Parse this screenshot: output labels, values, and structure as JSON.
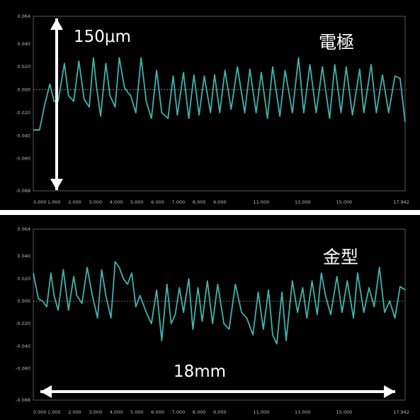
{
  "chart_data": [
    {
      "type": "line",
      "annotation_material": "電極",
      "annotation_scale": "150μm",
      "x_ticks": [
        "0.000",
        "1.000",
        "2.000",
        "3.000",
        "4.000",
        "5.000",
        "6.000",
        "7.000",
        "8.000",
        "9.000",
        "11.000",
        "13.000",
        "15.000",
        "17.942"
      ],
      "y_ticks": [
        "0.064",
        "0.040",
        "0.020",
        "0.000",
        "-0.020",
        "-0.040",
        "-0.060",
        "-0.088"
      ],
      "xlim": [
        0,
        17.942
      ],
      "ylim": [
        -0.088,
        0.064
      ],
      "grid": false,
      "line_color": "#3fb3ad",
      "series": [
        {
          "x": [
            0,
            0.3,
            0.55,
            0.8,
            1.0,
            1.2,
            1.5,
            1.7,
            1.95,
            2.2,
            2.45,
            2.7,
            2.9,
            3.05,
            3.25,
            3.5,
            3.7,
            3.95,
            4.15,
            4.4,
            4.55,
            4.7,
            4.95,
            5.2,
            5.45,
            5.7,
            5.95,
            6.2,
            6.5,
            6.75,
            6.95,
            7.25,
            7.5,
            7.75,
            8.0,
            8.25,
            8.55,
            8.75,
            9.0,
            9.25,
            9.55,
            9.85,
            10.2,
            10.45,
            10.75,
            11.0,
            11.3,
            11.55,
            11.9,
            12.15,
            12.5,
            12.8,
            13.05,
            13.35,
            13.65,
            13.95,
            14.3,
            14.55,
            14.85,
            15.1,
            15.4,
            15.75,
            15.95,
            16.3,
            16.55,
            16.85,
            17.15,
            17.45,
            17.7,
            17.942
          ],
          "y": [
            -0.035,
            -0.035,
            -0.013,
            0.005,
            -0.01,
            -0.01,
            0.023,
            -0.005,
            -0.01,
            0.025,
            -0.008,
            -0.015,
            0.028,
            0.003,
            -0.023,
            0.023,
            -0.005,
            -0.015,
            0.028,
            0.002,
            -0.002,
            -0.005,
            -0.02,
            0.028,
            -0.01,
            -0.025,
            0.017,
            -0.02,
            -0.025,
            0.012,
            -0.022,
            0.015,
            -0.025,
            0.013,
            -0.022,
            0.012,
            -0.02,
            0.013,
            -0.02,
            0.017,
            -0.017,
            0.02,
            -0.02,
            0.018,
            -0.02,
            0.015,
            -0.025,
            0.02,
            -0.023,
            0.017,
            -0.02,
            0.028,
            -0.02,
            0.022,
            -0.02,
            0.02,
            -0.025,
            0.022,
            -0.02,
            0.02,
            -0.022,
            0.018,
            -0.02,
            0.022,
            -0.02,
            0.013,
            -0.02,
            0.012,
            0.01,
            -0.028
          ]
        }
      ]
    },
    {
      "type": "line",
      "annotation_material": "金型",
      "annotation_scale": "18mm",
      "x_ticks": [
        "0.000",
        "1.000",
        "2.000",
        "3.000",
        "4.000",
        "5.000",
        "6.000",
        "7.000",
        "8.000",
        "9.000",
        "11.000",
        "13.000",
        "15.000",
        "17.942"
      ],
      "y_ticks": [
        "0.064",
        "0.040",
        "0.020",
        "0.000",
        "-0.020",
        "-0.040",
        "-0.060",
        "-0.088"
      ],
      "xlim": [
        0,
        17.942
      ],
      "ylim": [
        -0.088,
        0.064
      ],
      "grid": false,
      "line_color": "#3fb3ad",
      "series": [
        {
          "x": [
            0,
            0.25,
            0.45,
            0.65,
            0.85,
            1.0,
            1.2,
            1.45,
            1.7,
            1.95,
            2.1,
            2.35,
            2.6,
            2.85,
            3.1,
            3.3,
            3.5,
            3.75,
            3.95,
            4.15,
            4.35,
            4.55,
            4.75,
            4.95,
            5.15,
            5.45,
            5.7,
            5.95,
            6.2,
            6.45,
            6.65,
            6.85,
            7.05,
            7.25,
            7.5,
            7.7,
            7.95,
            8.15,
            8.4,
            8.65,
            8.9,
            9.2,
            9.45,
            9.75,
            10.05,
            10.3,
            10.6,
            10.85,
            11.1,
            11.35,
            11.55,
            11.75,
            12.0,
            12.2,
            12.5,
            12.75,
            13.0,
            13.2,
            13.45,
            13.7,
            13.9,
            14.1,
            14.35,
            14.65,
            14.9,
            15.15,
            15.45,
            15.65,
            15.95,
            16.2,
            16.45,
            16.7,
            16.95,
            17.2,
            17.45,
            17.7,
            17.942
          ],
          "y": [
            0.025,
            0.002,
            0.0,
            -0.005,
            0.025,
            0.005,
            -0.008,
            0.028,
            -0.008,
            0.022,
            0.005,
            -0.002,
            0.03,
            0.005,
            -0.015,
            0.028,
            0.005,
            -0.015,
            0.035,
            0.03,
            0.02,
            0.015,
            0.025,
            -0.005,
            0.005,
            -0.01,
            -0.02,
            0.01,
            -0.035,
            0.015,
            -0.02,
            -0.012,
            0.012,
            -0.01,
            0.02,
            -0.025,
            0.012,
            -0.018,
            0.018,
            -0.02,
            0.015,
            -0.02,
            -0.025,
            0.015,
            -0.01,
            -0.015,
            -0.03,
            0.008,
            -0.025,
            0.01,
            -0.03,
            -0.038,
            0.008,
            -0.035,
            0.018,
            -0.01,
            0.012,
            -0.015,
            0.018,
            -0.012,
            0.025,
            0.005,
            -0.012,
            0.022,
            -0.01,
            0.018,
            -0.015,
            0.025,
            -0.01,
            0.012,
            -0.005,
            0.03,
            -0.01,
            0.0,
            -0.015,
            0.013,
            0.01
          ]
        }
      ]
    }
  ]
}
